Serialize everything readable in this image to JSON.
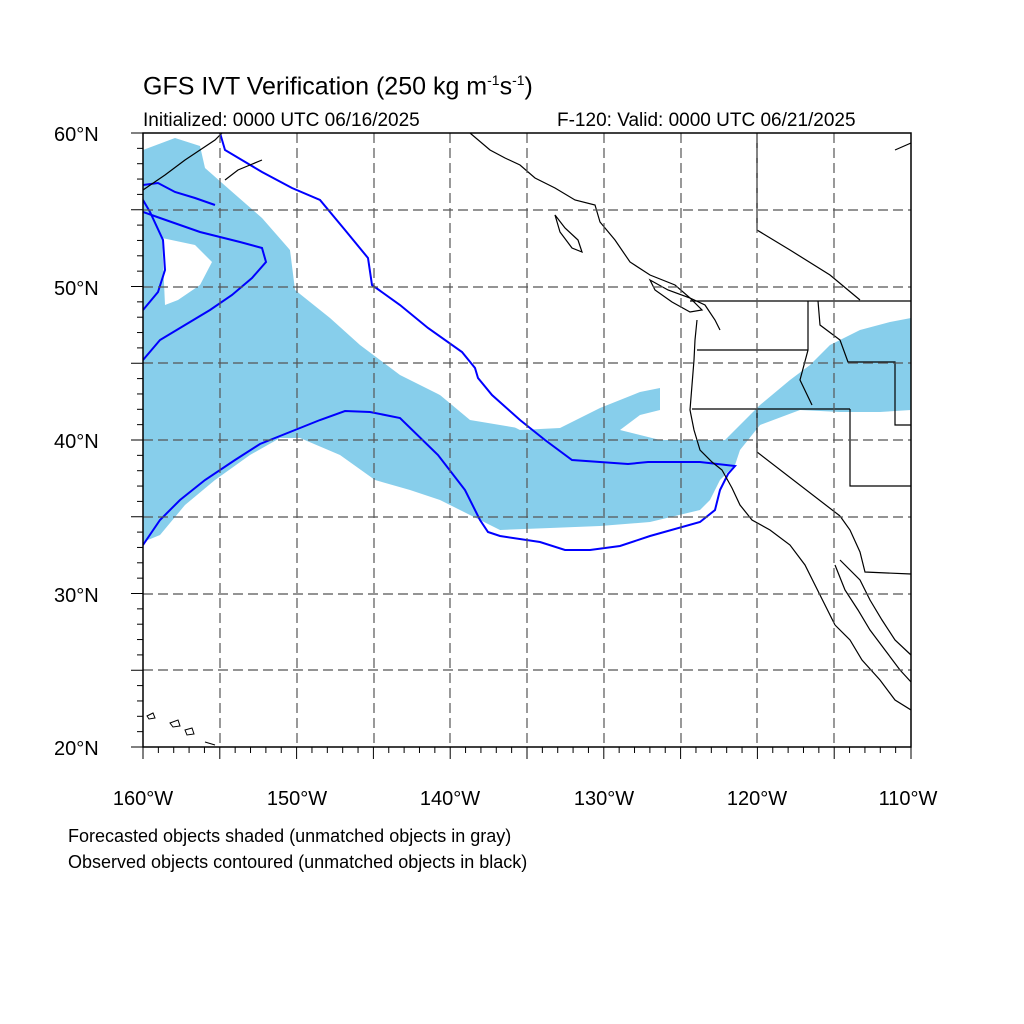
{
  "title": {
    "main": "GFS IVT Verification (250 kg m",
    "sup1": "-1",
    "mid": "s",
    "sup2": "-1",
    "end": ")"
  },
  "initialized": "Initialized: 0000 UTC 06/16/2025",
  "valid": "F-120: Valid: 0000 UTC 06/21/2025",
  "lat_labels": [
    "60°N",
    "50°N",
    "40°N",
    "30°N",
    "20°N"
  ],
  "lon_labels": [
    "160°W",
    "150°W",
    "140°W",
    "130°W",
    "120°W",
    "110°W"
  ],
  "footnotes": {
    "line1": "Forecasted objects shaded (unmatched objects in gray)",
    "line2": "Observed objects contoured (unmatched objects in black)"
  },
  "colors": {
    "forecast_fill": "#87ceeb",
    "observed_contour": "#0000ff",
    "coastline": "#000000",
    "grid": "#555555"
  }
}
